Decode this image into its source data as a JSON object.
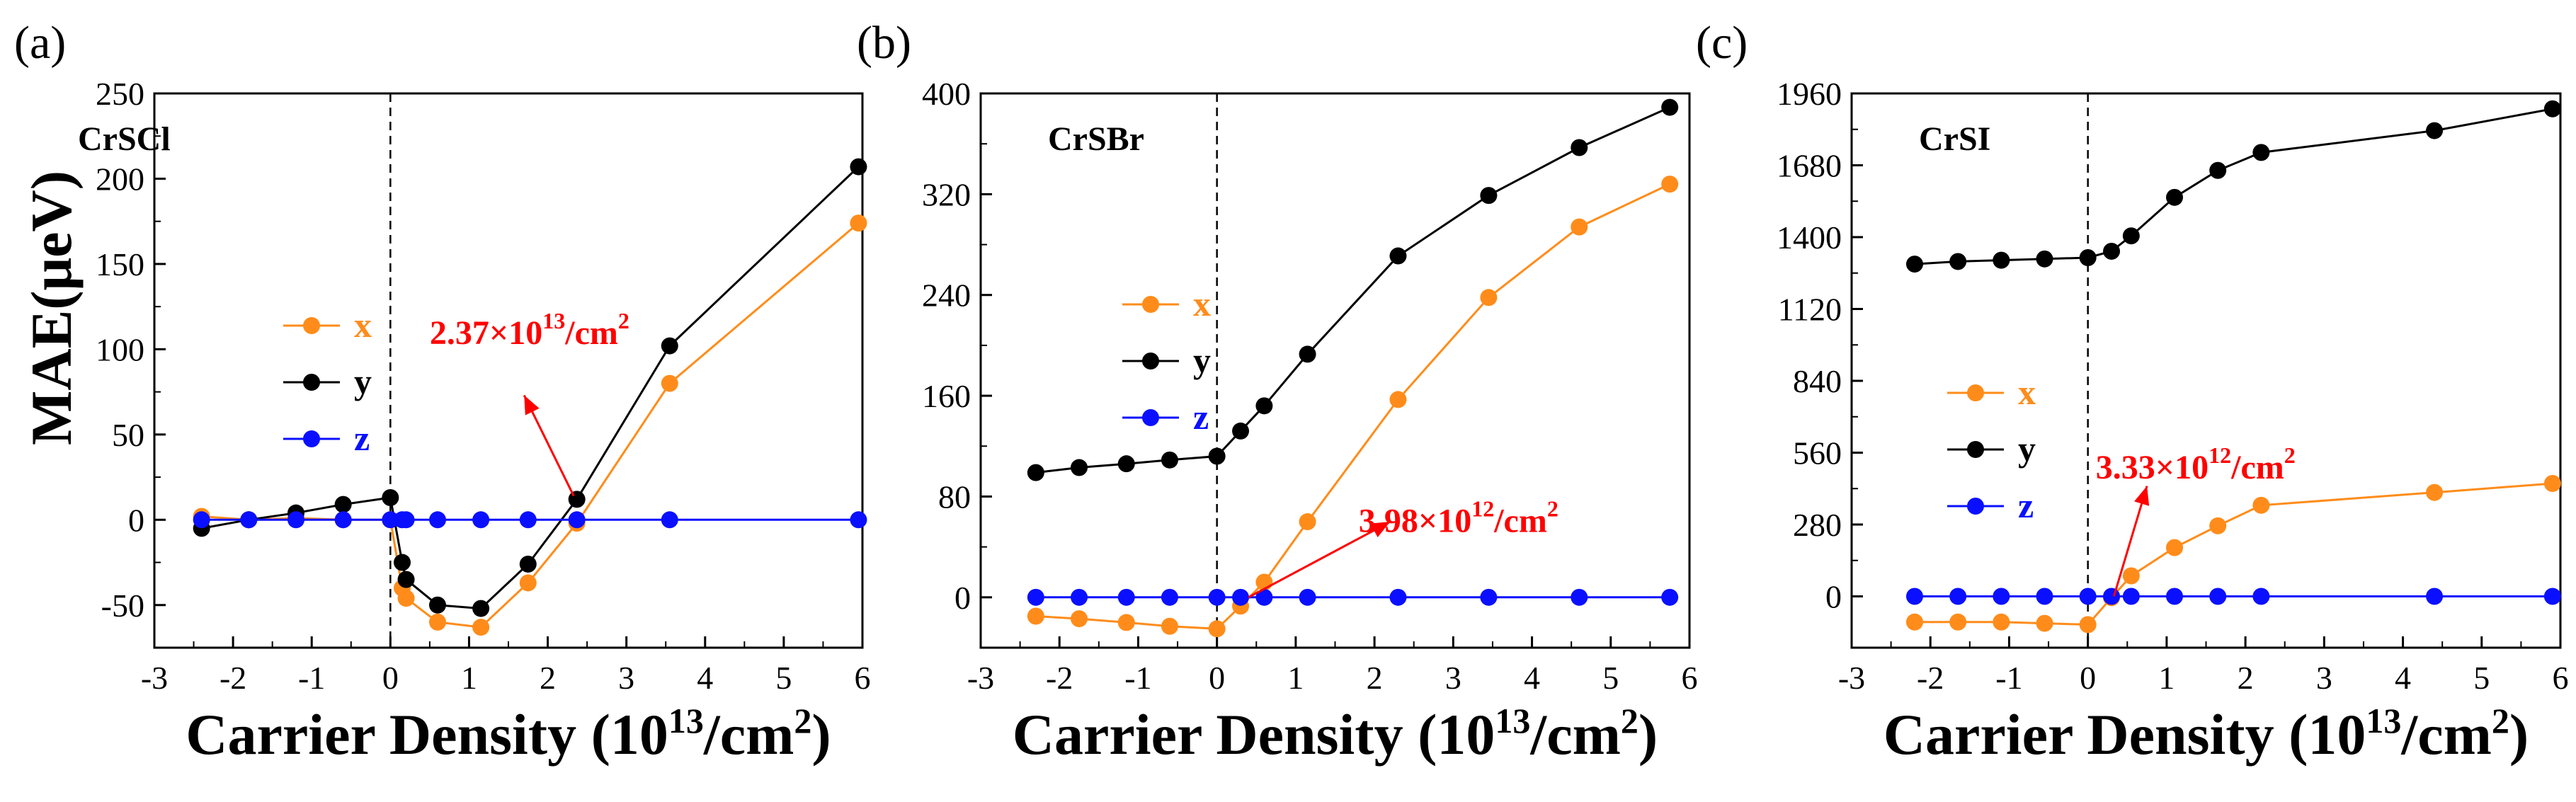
{
  "colors": {
    "x": "#ff8c1a",
    "y": "#000000",
    "z": "#0a10ff",
    "annotation": "#ff0000"
  },
  "y_axis_title": "MAE(μeV)",
  "x_axis_title": {
    "main": "Carrier Density (10",
    "sup": "13",
    "tail": "/cm",
    "sup2": "2",
    "close": ")"
  },
  "chart_data": [
    {
      "type": "line",
      "panel_label": "(a)",
      "compound": "CrSCl",
      "xlabel": "Carrier Density (10^13/cm^2)",
      "ylabel": "MAE(μeV)",
      "xlim": [
        -3,
        6
      ],
      "ylim": [
        -75,
        250
      ],
      "xticks": [
        -3,
        -2,
        -1,
        0,
        1,
        2,
        3,
        4,
        5,
        6
      ],
      "yticks": [
        -50,
        0,
        50,
        100,
        150,
        200,
        250
      ],
      "legend": [
        "x",
        "y",
        "z"
      ],
      "series": [
        {
          "name": "x",
          "x": [
            -2.4,
            -1.8,
            -1.2,
            -0.6,
            0,
            0.15,
            0.2,
            0.6,
            1.15,
            1.75,
            2.37,
            3.55,
            5.95
          ],
          "y": [
            2,
            0,
            1,
            0,
            0,
            -40,
            -46,
            -60,
            -63,
            -37,
            -2,
            80,
            174
          ]
        },
        {
          "name": "y",
          "x": [
            -2.4,
            -1.8,
            -1.2,
            -0.6,
            0,
            0.15,
            0.2,
            0.6,
            1.15,
            1.75,
            2.37,
            3.55,
            5.95
          ],
          "y": [
            -5,
            0,
            4,
            9,
            13,
            -25,
            -35,
            -50,
            -52,
            -26,
            12,
            102,
            207
          ]
        },
        {
          "name": "z",
          "x": [
            -2.4,
            -1.8,
            -1.2,
            -0.6,
            0,
            0.15,
            0.2,
            0.6,
            1.15,
            1.75,
            2.37,
            3.55,
            5.95
          ],
          "y": [
            0,
            0,
            0,
            0,
            0,
            0,
            0,
            0,
            0,
            0,
            0,
            0,
            0
          ]
        }
      ],
      "annotation": {
        "base": "2.37×10",
        "exp": "13",
        "unit": "/cm",
        "unit_exp": "2",
        "point": [
          2.37,
          12
        ],
        "text_at": [
          0.5,
          103
        ]
      }
    },
    {
      "type": "line",
      "panel_label": "(b)",
      "compound": "CrSBr",
      "xlabel": "Carrier Density (10^13/cm^2)",
      "ylabel": "MAE(μeV)",
      "xlim": [
        -3,
        6
      ],
      "ylim": [
        -40,
        400
      ],
      "xticks": [
        -3,
        -2,
        -1,
        0,
        1,
        2,
        3,
        4,
        5,
        6
      ],
      "yticks": [
        0,
        80,
        160,
        240,
        320,
        400
      ],
      "legend": [
        "x",
        "y",
        "z"
      ],
      "series": [
        {
          "name": "x",
          "x": [
            -2.3,
            -1.75,
            -1.15,
            -0.6,
            0,
            0.3,
            0.6,
            1.15,
            2.3,
            3.45,
            4.6,
            5.75
          ],
          "y": [
            -15,
            -17,
            -20,
            -23,
            -25,
            -7,
            12,
            60,
            157,
            238,
            294,
            328
          ]
        },
        {
          "name": "y",
          "x": [
            -2.3,
            -1.75,
            -1.15,
            -0.6,
            0,
            0.3,
            0.6,
            1.15,
            2.3,
            3.45,
            4.6,
            5.75
          ],
          "y": [
            99,
            103,
            106,
            109,
            112,
            132,
            152,
            193,
            271,
            319,
            357,
            389
          ]
        },
        {
          "name": "z",
          "x": [
            -2.3,
            -1.75,
            -1.15,
            -0.6,
            0,
            0.3,
            0.6,
            1.15,
            2.3,
            3.45,
            4.6,
            5.75
          ],
          "y": [
            0,
            0,
            0,
            0,
            0,
            0,
            0,
            0,
            0,
            0,
            0,
            0
          ]
        }
      ],
      "annotation": {
        "base": "3.98×10",
        "exp": "12",
        "unit": "/cm",
        "unit_exp": "2",
        "point": [
          0.4,
          0
        ],
        "text_at": [
          1.8,
          52
        ]
      }
    },
    {
      "type": "line",
      "panel_label": "(c)",
      "compound": "CrSI",
      "xlabel": "Carrier Density (10^13/cm^2)",
      "ylabel": "MAE(μeV)",
      "xlim": [
        -3,
        6
      ],
      "ylim": [
        -200,
        1960
      ],
      "xticks": [
        -3,
        -2,
        -1,
        0,
        1,
        2,
        3,
        4,
        5,
        6
      ],
      "yticks": [
        0,
        280,
        560,
        840,
        1120,
        1400,
        1680,
        1960
      ],
      "legend": [
        "x",
        "y",
        "z"
      ],
      "series": [
        {
          "name": "x",
          "x": [
            -2.2,
            -1.65,
            -1.1,
            -0.55,
            0,
            0.3,
            0.55,
            1.1,
            1.65,
            2.2,
            4.4,
            5.9
          ],
          "y": [
            -100,
            -100,
            -100,
            -105,
            -110,
            -5,
            80,
            190,
            275,
            355,
            405,
            440
          ]
        },
        {
          "name": "y",
          "x": [
            -2.2,
            -1.65,
            -1.1,
            -0.55,
            0,
            0.3,
            0.55,
            1.1,
            1.65,
            2.2,
            4.4,
            5.9
          ],
          "y": [
            1295,
            1305,
            1310,
            1315,
            1320,
            1345,
            1405,
            1555,
            1660,
            1730,
            1815,
            1900
          ]
        },
        {
          "name": "z",
          "x": [
            -2.2,
            -1.65,
            -1.1,
            -0.55,
            0,
            0.3,
            0.55,
            1.1,
            1.65,
            2.2,
            4.4,
            5.9
          ],
          "y": [
            0,
            0,
            0,
            0,
            0,
            0,
            0,
            0,
            0,
            0,
            0,
            0
          ]
        }
      ],
      "annotation": {
        "base": "3.33×10",
        "exp": "12",
        "unit": "/cm",
        "unit_exp": "2",
        "point": [
          0.33,
          0
        ],
        "text_at": [
          0.1,
          460
        ]
      }
    }
  ]
}
